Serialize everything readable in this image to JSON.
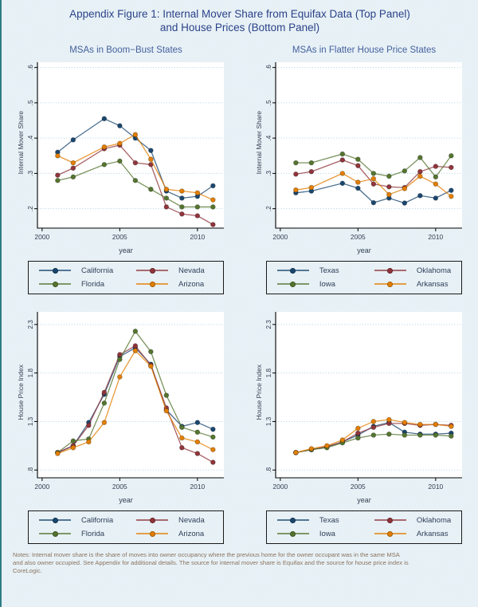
{
  "title": {
    "line1": "Appendix Figure 1: Internal Mover Share from Equifax Data (Top Panel)",
    "line2": "and House Prices (Bottom Panel)"
  },
  "colors": {
    "title": "#2b4389",
    "panel_title": "#45619e",
    "axis": "#000000",
    "tick_label": "#333f52",
    "grid": "#aed2e0",
    "plot_bg": "#ffffff",
    "checker": "#cfe2ec",
    "notes": "#8a7360",
    "legend_border": "#1a1a1a"
  },
  "palette": {
    "navy": "#1a476f",
    "maroon": "#90353b",
    "forest": "#55752f",
    "orange": "#e37e00"
  },
  "chart_data": [
    {
      "type": "line",
      "title": "MSAs in Boom−Bust States",
      "ylabel": "Internal Mover Share",
      "xlabel": "year",
      "grid": "horizontal-dotted",
      "legend_position": "below",
      "xlim": [
        1999.7,
        2011.7
      ],
      "ylim": [
        0.145,
        0.615
      ],
      "xticks": [
        2000,
        2005,
        2010
      ],
      "yticks": [
        {
          "v": 0.2,
          "label": ".2"
        },
        {
          "v": 0.3,
          "label": ".3"
        },
        {
          "v": 0.4,
          "label": ".4"
        },
        {
          "v": 0.5,
          "label": ".5"
        },
        {
          "v": 0.6,
          "label": ".6"
        }
      ],
      "x": [
        2001,
        2002,
        2004,
        2005,
        2006,
        2007,
        2008,
        2009,
        2010,
        2011
      ],
      "series": [
        {
          "name": "California",
          "color": "navy",
          "values": [
            0.36,
            0.395,
            0.455,
            0.435,
            0.4,
            0.365,
            0.25,
            0.23,
            0.235,
            0.265
          ]
        },
        {
          "name": "Nevada",
          "color": "maroon",
          "values": [
            0.295,
            0.315,
            0.37,
            0.38,
            0.33,
            0.325,
            0.205,
            0.185,
            0.18,
            0.155
          ]
        },
        {
          "name": "Florida",
          "color": "forest",
          "values": [
            0.28,
            0.29,
            0.325,
            0.335,
            0.28,
            0.255,
            0.23,
            0.205,
            0.205,
            0.205
          ]
        },
        {
          "name": "Arizona",
          "color": "orange",
          "values": [
            0.35,
            0.33,
            0.375,
            0.385,
            0.41,
            0.34,
            0.255,
            0.25,
            0.245,
            0.225
          ]
        }
      ]
    },
    {
      "type": "line",
      "title": "MSAs in Flatter House Price States",
      "ylabel": "Internal Mover Share",
      "xlabel": "year",
      "grid": "horizontal-dotted",
      "legend_position": "below",
      "xlim": [
        1999.7,
        2011.7
      ],
      "ylim": [
        0.145,
        0.615
      ],
      "xticks": [
        2000,
        2005,
        2010
      ],
      "yticks": [
        {
          "v": 0.2,
          "label": ".2"
        },
        {
          "v": 0.3,
          "label": ".3"
        },
        {
          "v": 0.4,
          "label": ".4"
        },
        {
          "v": 0.5,
          "label": ".5"
        },
        {
          "v": 0.6,
          "label": ".6"
        }
      ],
      "x": [
        2001,
        2002,
        2004,
        2005,
        2006,
        2007,
        2008,
        2009,
        2010,
        2011
      ],
      "series": [
        {
          "name": "Texas",
          "color": "navy",
          "values": [
            0.245,
            0.25,
            0.272,
            0.258,
            0.217,
            0.23,
            0.216,
            0.237,
            0.23,
            0.252
          ]
        },
        {
          "name": "Oklahoma",
          "color": "maroon",
          "values": [
            0.298,
            0.305,
            0.338,
            0.322,
            0.27,
            0.262,
            0.26,
            0.305,
            0.32,
            0.317
          ]
        },
        {
          "name": "Iowa",
          "color": "forest",
          "values": [
            0.33,
            0.33,
            0.355,
            0.34,
            0.3,
            0.292,
            0.307,
            0.345,
            0.29,
            0.35
          ]
        },
        {
          "name": "Arkansas",
          "color": "orange",
          "values": [
            0.253,
            0.26,
            0.3,
            0.275,
            0.285,
            0.24,
            0.257,
            0.292,
            0.27,
            0.235
          ]
        }
      ]
    },
    {
      "type": "line",
      "title": "",
      "ylabel": "House Price Index",
      "xlabel": "year",
      "grid": "horizontal-dotted",
      "legend_position": "below",
      "xlim": [
        1999.7,
        2011.7
      ],
      "ylim": [
        0.72,
        2.43
      ],
      "xticks": [
        2000,
        2005,
        2010
      ],
      "yticks": [
        {
          "v": 0.8,
          "label": ".8"
        },
        {
          "v": 1.3,
          "label": "1.3"
        },
        {
          "v": 1.8,
          "label": "1.8"
        },
        {
          "v": 2.3,
          "label": "2.3"
        }
      ],
      "x": [
        2001,
        2002,
        2003,
        2004,
        2005,
        2006,
        2007,
        2008,
        2009,
        2010,
        2011
      ],
      "series": [
        {
          "name": "California",
          "color": "navy",
          "values": [
            0.98,
            1.05,
            1.29,
            1.58,
            1.97,
            2.06,
            1.89,
            1.42,
            1.25,
            1.29,
            1.22
          ]
        },
        {
          "name": "Nevada",
          "color": "maroon",
          "values": [
            0.98,
            1.05,
            1.26,
            1.6,
            1.99,
            2.08,
            1.88,
            1.44,
            1.03,
            0.97,
            0.88
          ]
        },
        {
          "name": "Florida",
          "color": "forest",
          "values": [
            0.98,
            1.1,
            1.12,
            1.49,
            1.94,
            2.23,
            2.02,
            1.57,
            1.24,
            1.19,
            1.14
          ]
        },
        {
          "name": "Arizona",
          "color": "orange",
          "values": [
            0.97,
            1.03,
            1.09,
            1.29,
            1.76,
            2.03,
            1.87,
            1.41,
            1.13,
            1.09,
            1.01
          ]
        }
      ]
    },
    {
      "type": "line",
      "title": "",
      "ylabel": "House Price Index",
      "xlabel": "year",
      "grid": "horizontal-dotted",
      "legend_position": "below",
      "xlim": [
        1999.7,
        2011.7
      ],
      "ylim": [
        0.72,
        2.43
      ],
      "xticks": [
        2000,
        2005,
        2010
      ],
      "yticks": [
        {
          "v": 0.8,
          "label": ".8"
        },
        {
          "v": 1.3,
          "label": "1.3"
        },
        {
          "v": 1.8,
          "label": "1.8"
        },
        {
          "v": 2.3,
          "label": "2.3"
        }
      ],
      "x": [
        2001,
        2002,
        2003,
        2004,
        2005,
        2006,
        2007,
        2008,
        2009,
        2010,
        2011
      ],
      "series": [
        {
          "name": "Texas",
          "color": "navy",
          "values": [
            0.98,
            1.01,
            1.04,
            1.09,
            1.16,
            1.25,
            1.29,
            1.19,
            1.17,
            1.17,
            1.18
          ]
        },
        {
          "name": "Oklahoma",
          "color": "maroon",
          "values": [
            0.98,
            1.01,
            1.04,
            1.09,
            1.18,
            1.24,
            1.28,
            1.28,
            1.26,
            1.27,
            1.26
          ]
        },
        {
          "name": "Iowa",
          "color": "forest",
          "values": [
            0.98,
            1.01,
            1.03,
            1.08,
            1.13,
            1.16,
            1.17,
            1.16,
            1.16,
            1.16,
            1.15
          ]
        },
        {
          "name": "Arkansas",
          "color": "orange",
          "values": [
            0.98,
            1.02,
            1.05,
            1.11,
            1.23,
            1.3,
            1.32,
            1.29,
            1.27,
            1.27,
            1.25
          ]
        }
      ]
    }
  ],
  "notes": {
    "line1": "Notes: Internal mover share is the share of moves into owner occupancy where the previous home for the owner occupant was in the same MSA",
    "line2": "and also owner occupied.  See Appendix for additional details.  The source for internal mover share is Equifax and the source for house price index is",
    "line3": "CoreLogic."
  }
}
